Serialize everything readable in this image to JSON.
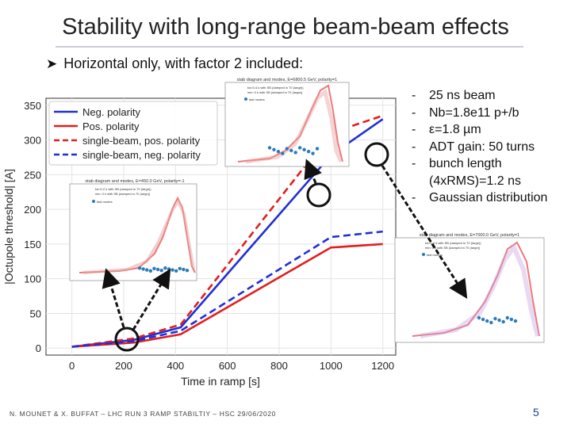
{
  "slide": {
    "title": "Stability with long-range beam-beam effects",
    "subtitle": "Horizontal only, with factor 2 included:",
    "subtitle_icon": "arrow-bullet-icon",
    "bullets": [
      "25 ns beam",
      "Nb=1.8e11 p+/b",
      "ε=1.8 µm",
      "ADT gain: 50 turns",
      "bunch length (4xRMS)=1.2 ns",
      "Gaussian distribution"
    ],
    "footer": "N. MOUNET & X. BUFFAT – LHC RUN 3 RAMP STABILTIY – HSC 29/06/2020",
    "page_number": "5",
    "accent_color": "#1f3f8f"
  },
  "chart_data": {
    "type": "line",
    "title": "",
    "xlabel": "Time in ramp [s]",
    "ylabel": "|Octupole threshold| [A]",
    "xlim": [
      -100,
      1250
    ],
    "ylim": [
      -10,
      360
    ],
    "xticks": [
      0,
      200,
      400,
      600,
      800,
      1000,
      1200
    ],
    "yticks": [
      0,
      50,
      100,
      150,
      200,
      250,
      300,
      350
    ],
    "legend_position": "top-left",
    "series": [
      {
        "name": "Neg. polarity",
        "color": "#1f2fd6",
        "dash": "solid",
        "x": [
          0,
          240,
          420,
          1000,
          1200
        ],
        "y": [
          2,
          12,
          30,
          278,
          330
        ]
      },
      {
        "name": "Pos. polarity",
        "color": "#e01f1f",
        "dash": "solid",
        "x": [
          0,
          240,
          420,
          1000,
          1200
        ],
        "y": [
          2,
          8,
          20,
          145,
          150
        ]
      },
      {
        "name": "single-beam, pos. polarity",
        "color": "#e01f1f",
        "dash": "dashed",
        "x": [
          0,
          240,
          420,
          1000,
          1200
        ],
        "y": [
          2,
          14,
          34,
          310,
          335
        ]
      },
      {
        "name": "single-beam, neg. polarity",
        "color": "#1f2fd6",
        "dash": "dashed",
        "x": [
          0,
          240,
          420,
          1000,
          1200
        ],
        "y": [
          2,
          10,
          25,
          160,
          168
        ]
      }
    ],
    "annotations": [
      {
        "label": "stab diagram and modes, E=450.0 GeV, polarity=-1",
        "legend": [
          "tol=0.2 k with SB (damped in 70 (large))",
          "min: 0 k with SB (damped in 70 (large))",
          "fast modes"
        ]
      },
      {
        "label": "stab diagram and modes, E=6800.5 GeV, polarity=1",
        "legend": [
          "tol=0.4 k with SB (damped in 70 (large))",
          "min: 0 k with SB (damped in 70 (large))",
          "fast modes"
        ]
      },
      {
        "label": "stab diagram and modes, E=7000.0 GeV, polarity=1",
        "legend": [
          "tol=0.4 k with SB (damped in 70 (large))",
          "min: 0 k with SB (damped in 70 (large))",
          "fast modes"
        ]
      }
    ]
  }
}
